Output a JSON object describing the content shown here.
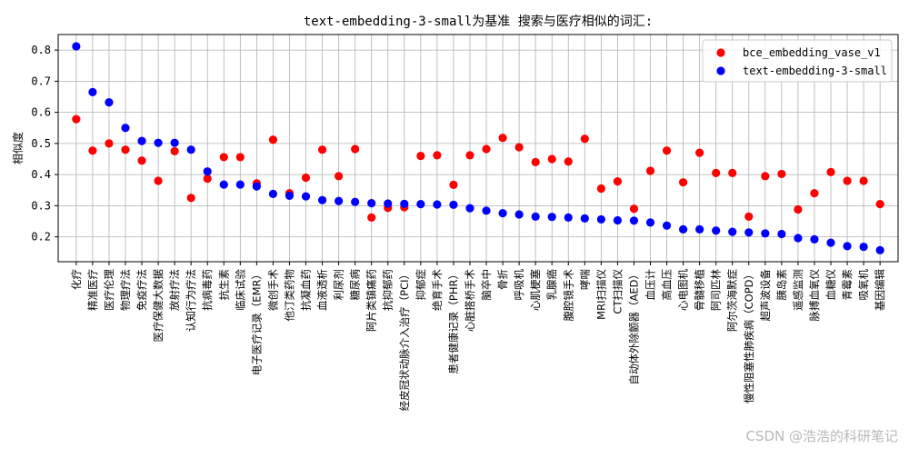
{
  "chart_data": {
    "type": "scatter",
    "title": "text-embedding-3-small为基准 搜索与医疗相似的词汇:",
    "xlabel": "",
    "ylabel": "相似度",
    "ylim": [
      0.12,
      0.85
    ],
    "yticks": [
      0.2,
      0.3,
      0.4,
      0.5,
      0.6,
      0.7,
      0.8
    ],
    "ytick_labels": [
      "0.2",
      "0.3",
      "0.4",
      "0.5",
      "0.6",
      "0.7",
      "0.8"
    ],
    "grid": true,
    "legend_position": "top-right",
    "categories": [
      "化疗",
      "精准医疗",
      "医疗伦理",
      "物理疗法",
      "免疫疗法",
      "医疗保健大数据",
      "放射疗法",
      "认知行为疗法",
      "抗病毒药",
      "抗生素",
      "临床试验",
      "电子医疗记录（EMR）",
      "微创手术",
      "他汀类药物",
      "抗凝血药",
      "血液透析",
      "利尿剂",
      "糖尿病",
      "阿片类镇痛药",
      "抗抑郁药",
      "经皮冠状动脉介入治疗（PCI）",
      "抑郁症",
      "绝育手术",
      "患者健康记录（PHR）",
      "心脏搭桥手术",
      "脑卒中",
      "骨折",
      "呼吸机",
      "心肌梗塞",
      "乳腺癌",
      "腹腔镜手术",
      "哮喘",
      "MRI扫描仪",
      "CT扫描仪",
      "自动体外除颤器（AED）",
      "血压计",
      "高血压",
      "心电图机",
      "骨髓移植",
      "阿司匹林",
      "阿尔茨海默症",
      "慢性阻塞性肺疾病（COPD）",
      "超声波设备",
      "胰岛素",
      "遥感监测",
      "脉搏血氧仪",
      "血糖仪",
      "青霉素",
      "吸氧机",
      "基因编辑"
    ],
    "series": [
      {
        "name": "bce_embedding_vase_v1",
        "color": "#ff0000",
        "values": [
          0.578,
          0.477,
          0.5,
          0.48,
          0.445,
          0.38,
          0.475,
          0.325,
          0.387,
          0.456,
          0.456,
          0.372,
          0.512,
          0.34,
          0.39,
          0.48,
          0.395,
          0.482,
          0.262,
          0.293,
          0.295,
          0.46,
          0.462,
          0.367,
          0.462,
          0.482,
          0.518,
          0.488,
          0.44,
          0.45,
          0.442,
          0.515,
          0.355,
          0.378,
          0.29,
          0.412,
          0.477,
          0.375,
          0.47,
          0.405,
          0.405,
          0.265,
          0.395,
          0.402,
          0.288,
          0.34,
          0.408,
          0.38,
          0.38,
          0.305
        ]
      },
      {
        "name": "text-embedding-3-small",
        "color": "#0000ff",
        "values": [
          0.812,
          0.665,
          0.632,
          0.55,
          0.508,
          0.502,
          0.502,
          0.48,
          0.41,
          0.368,
          0.368,
          0.362,
          0.338,
          0.332,
          0.33,
          0.318,
          0.315,
          0.312,
          0.308,
          0.307,
          0.306,
          0.305,
          0.304,
          0.303,
          0.292,
          0.284,
          0.276,
          0.272,
          0.265,
          0.264,
          0.262,
          0.259,
          0.256,
          0.253,
          0.252,
          0.246,
          0.236,
          0.224,
          0.224,
          0.22,
          0.216,
          0.214,
          0.211,
          0.209,
          0.196,
          0.192,
          0.181,
          0.17,
          0.168,
          0.157
        ]
      }
    ]
  },
  "watermark": "CSDN @浩浩的科研笔记"
}
